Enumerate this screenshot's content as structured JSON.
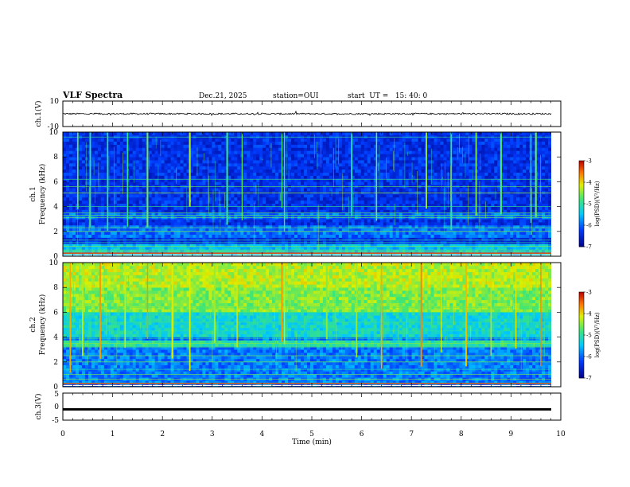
{
  "header": {
    "title": "VLF Spectra",
    "date": "Dec.21, 2025",
    "station": "station=OUI",
    "start": "start  UT =   15: 40: 0"
  },
  "chart_data": [
    {
      "type": "line",
      "name": "ch.1 waveform",
      "ylabel": "ch.1(V)",
      "ylim": [
        -10,
        10
      ],
      "yticks": [
        "10",
        "-10"
      ],
      "baseline_v": 0,
      "amplitude_v": 1.2
    },
    {
      "type": "heatmap",
      "name": "ch.1 spectrogram",
      "ylabel_top": "ch.1",
      "ylabel": "Frequency (kHz)",
      "ylim": [
        0,
        10
      ],
      "yticks": [
        "0",
        "2",
        "4",
        "6",
        "8",
        "10"
      ],
      "colorbar": {
        "label": "log(PSD)(V²/Hz)",
        "range": [
          -7,
          -3
        ],
        "ticks": [
          "-3",
          "-4",
          "-5",
          "-6",
          "-7"
        ]
      },
      "horizontal_lines_khz": [
        0.2,
        0.35,
        0.5,
        0.8,
        1.1,
        1.3,
        2.0,
        2.3,
        3.1,
        3.3,
        3.5,
        4.0,
        5.1,
        5.6,
        6.2,
        9.6
      ],
      "bursts_min": [
        0.3,
        0.55,
        0.9,
        1.3,
        1.7,
        2.55,
        3.3,
        3.6,
        4.4,
        4.45,
        5.8,
        6.3,
        7.3,
        7.8,
        8.3,
        8.8,
        9.4,
        9.5
      ]
    },
    {
      "type": "heatmap",
      "name": "ch.2 spectrogram",
      "ylabel_top": "ch.2",
      "ylabel": "Frequency (kHz)",
      "ylim": [
        0,
        10
      ],
      "yticks": [
        "0",
        "2",
        "4",
        "6",
        "8",
        "10"
      ],
      "colorbar": {
        "label": "log(PSD)(V²/Hz)",
        "range": [
          -7,
          -3
        ],
        "ticks": [
          "-3",
          "-4",
          "-5",
          "-6",
          "-7"
        ]
      },
      "horizontal_lines_khz": [
        0.3,
        0.6,
        1.0,
        1.4,
        2.0,
        2.5,
        3.2,
        3.5,
        3.9,
        4.5,
        5.2,
        6.0,
        6.4
      ],
      "bursts_min": [
        0.15,
        0.4,
        0.75,
        1.25,
        1.7,
        2.2,
        2.55,
        3.05,
        3.5,
        4.4,
        4.45,
        5.3,
        5.9,
        6.4,
        7.2,
        7.6,
        8.1,
        8.6,
        9.1,
        9.6
      ]
    },
    {
      "type": "line",
      "name": "ch.3 waveform",
      "ylabel": "ch.3(V)",
      "ylim": [
        -5,
        5
      ],
      "yticks": [
        "5",
        "0",
        "-5"
      ],
      "level_v": -1.0
    }
  ],
  "xaxis": {
    "label": "Time (min)",
    "range": [
      0,
      10
    ],
    "ticks": [
      "0",
      "1",
      "2",
      "3",
      "4",
      "5",
      "6",
      "7",
      "8",
      "9",
      "10"
    ]
  }
}
